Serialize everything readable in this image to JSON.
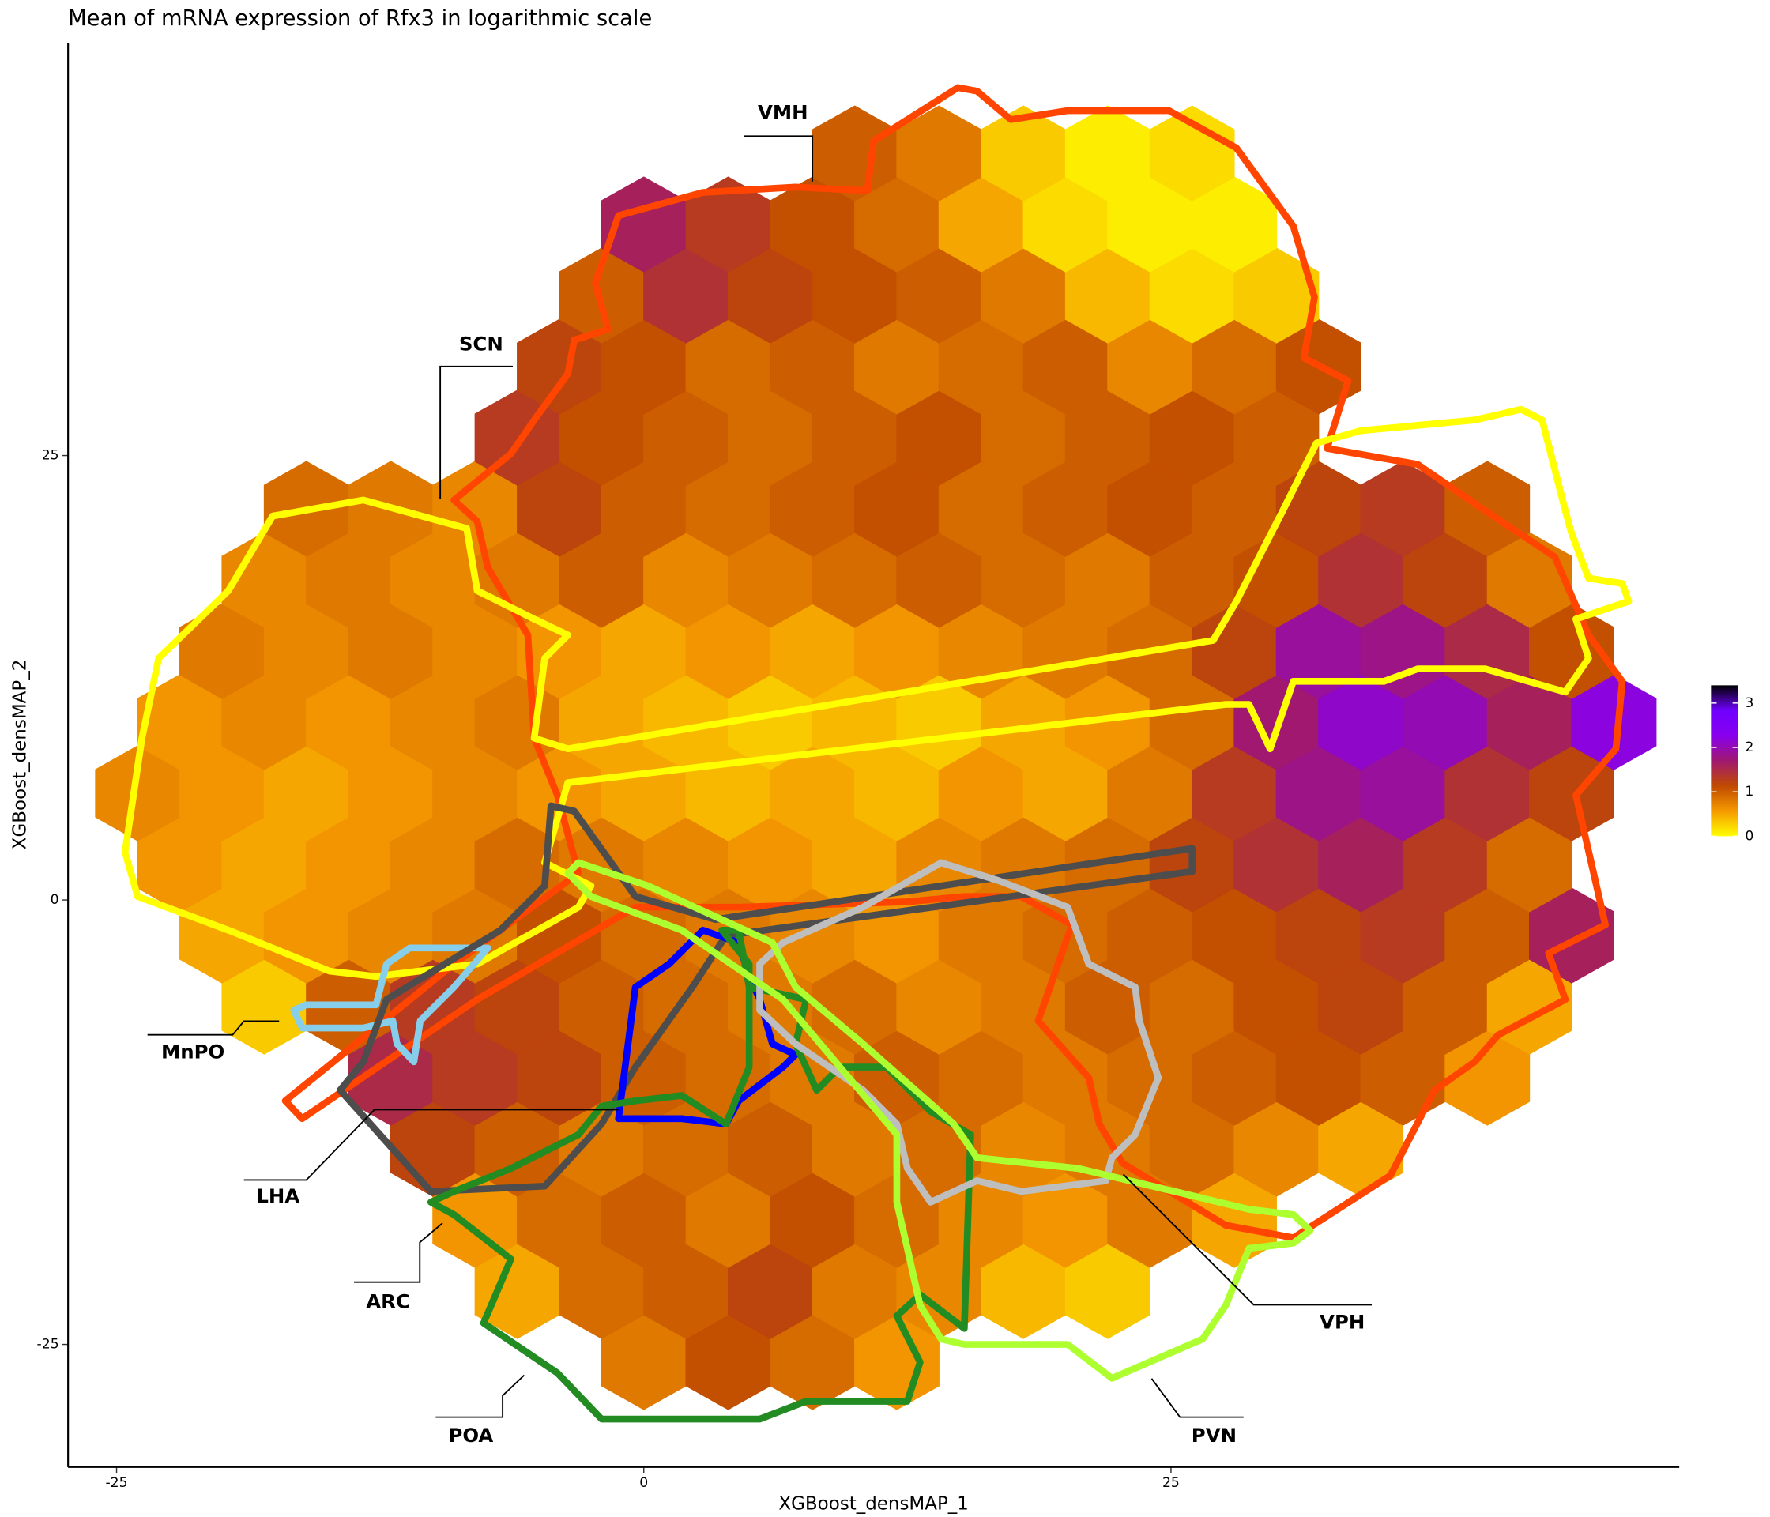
{
  "chart_data": {
    "type": "hexbin",
    "title": "Mean of mRNA expression of Rfx3 in logarithmic scale",
    "xlabel": "XGBoost_densMAP_1",
    "ylabel": "XGBoost_densMAP_2",
    "xlim": [
      -27.3,
      49.1
    ],
    "ylim": [
      -31.9,
      48.2
    ],
    "xticks": [
      -25,
      0,
      25
    ],
    "yticks": [
      -25,
      0,
      25
    ],
    "clim": [
      0,
      3.4
    ],
    "cticks": [
      0,
      1,
      2,
      3
    ],
    "colors": [
      "#ffff00",
      "#f59a00",
      "#c04a00",
      "#a01870",
      "#8800ee",
      "#7000ff",
      "#000000"
    ],
    "rows": [
      {
        "y": -26,
        "x": [
          0,
          4,
          8,
          12
        ],
        "values": [
          0.8,
          1.1,
          0.9,
          0.6
        ]
      },
      {
        "y": -22,
        "x": [
          -6,
          -2,
          2,
          6,
          10,
          14,
          18,
          22
        ],
        "values": [
          0.5,
          0.9,
          1.0,
          1.2,
          0.8,
          0.7,
          0.4,
          0.3
        ]
      },
      {
        "y": -18,
        "x": [
          -8,
          -4,
          0,
          4,
          8,
          12,
          16,
          20,
          24,
          28
        ],
        "values": [
          0.6,
          0.9,
          1.0,
          0.8,
          1.1,
          0.9,
          0.7,
          0.6,
          0.8,
          0.5
        ]
      },
      {
        "y": -14,
        "x": [
          -10,
          -6,
          -2,
          2,
          6,
          10,
          14,
          18,
          22,
          26,
          30,
          34
        ],
        "values": [
          1.2,
          1.0,
          0.8,
          0.9,
          1.0,
          0.8,
          0.9,
          0.7,
          0.8,
          0.9,
          0.7,
          0.5
        ]
      },
      {
        "y": -10,
        "x": [
          -12,
          -8,
          -4,
          0,
          4,
          8,
          12,
          16,
          20,
          24,
          28,
          32,
          36,
          40
        ],
        "values": [
          1.5,
          1.3,
          1.2,
          1.0,
          0.9,
          0.8,
          1.0,
          0.9,
          0.8,
          0.9,
          1.0,
          1.1,
          1.0,
          0.6
        ]
      },
      {
        "y": -6,
        "x": [
          -18,
          -14,
          -10,
          -6,
          -2,
          2,
          6,
          10,
          14,
          18,
          22,
          26,
          30,
          34,
          38,
          42
        ],
        "values": [
          0.3,
          1.0,
          1.3,
          1.2,
          1.0,
          0.9,
          0.8,
          0.9,
          0.7,
          0.8,
          1.0,
          0.9,
          1.1,
          1.2,
          1.0,
          0.5
        ]
      },
      {
        "y": -2,
        "x": [
          -20,
          -16,
          -12,
          -8,
          -4,
          0,
          4,
          8,
          12,
          16,
          20,
          24,
          28,
          32,
          36,
          40,
          44
        ],
        "values": [
          0.5,
          0.6,
          0.7,
          0.8,
          1.1,
          0.9,
          0.8,
          0.7,
          0.6,
          0.8,
          0.9,
          1.0,
          1.1,
          1.2,
          1.3,
          1.0,
          1.6
        ]
      },
      {
        "y": 2,
        "x": [
          -22,
          -18,
          -14,
          -10,
          -6,
          -2,
          2,
          6,
          10,
          14,
          18,
          22,
          26,
          30,
          34,
          38,
          42
        ],
        "values": [
          0.6,
          0.5,
          0.6,
          0.7,
          0.9,
          0.8,
          0.7,
          0.6,
          0.5,
          0.7,
          0.8,
          0.9,
          1.2,
          1.4,
          1.6,
          1.3,
          0.9
        ]
      },
      {
        "y": 6,
        "x": [
          -24,
          -20,
          -16,
          -12,
          -8,
          -4,
          0,
          4,
          8,
          12,
          16,
          20,
          24,
          28,
          32,
          36,
          40,
          44
        ],
        "values": [
          0.7,
          0.6,
          0.5,
          0.6,
          0.7,
          0.6,
          0.5,
          0.4,
          0.5,
          0.4,
          0.6,
          0.5,
          0.8,
          1.3,
          1.8,
          1.9,
          1.4,
          1.2
        ]
      },
      {
        "y": 10,
        "x": [
          -22,
          -18,
          -14,
          -10,
          -6,
          -2,
          2,
          6,
          10,
          14,
          18,
          22,
          26,
          30,
          34,
          38,
          42,
          46
        ],
        "values": [
          0.6,
          0.7,
          0.6,
          0.7,
          0.8,
          0.5,
          0.4,
          0.3,
          0.4,
          0.3,
          0.5,
          0.6,
          0.9,
          1.7,
          2.1,
          2.0,
          1.6,
          2.2
        ]
      },
      {
        "y": 14,
        "x": [
          -20,
          -16,
          -12,
          -8,
          -4,
          0,
          4,
          8,
          12,
          16,
          20,
          24,
          28,
          32,
          36,
          40,
          44
        ],
        "values": [
          0.8,
          0.7,
          0.8,
          0.7,
          0.6,
          0.5,
          0.6,
          0.5,
          0.6,
          0.7,
          0.8,
          0.9,
          1.2,
          1.9,
          1.8,
          1.5,
          1.1
        ]
      },
      {
        "y": 18,
        "x": [
          -18,
          -14,
          -10,
          -6,
          -2,
          2,
          6,
          10,
          14,
          18,
          22,
          26,
          30,
          34,
          38,
          42
        ],
        "values": [
          0.7,
          0.8,
          0.7,
          0.8,
          1.0,
          0.7,
          0.8,
          0.9,
          1.0,
          0.9,
          0.8,
          1.0,
          1.1,
          1.4,
          1.2,
          0.8
        ]
      },
      {
        "y": 22,
        "x": [
          -16,
          -12,
          -8,
          -4,
          0,
          4,
          8,
          12,
          16,
          20,
          24,
          28,
          32,
          36,
          40
        ],
        "values": [
          0.9,
          0.8,
          0.7,
          1.2,
          1.0,
          0.9,
          1.0,
          1.1,
          0.9,
          1.0,
          1.1,
          1.0,
          1.2,
          1.3,
          1.0
        ]
      },
      {
        "y": 26,
        "x": [
          -6,
          -2,
          2,
          6,
          10,
          14,
          18,
          22,
          26,
          30
        ],
        "values": [
          1.3,
          1.1,
          1.0,
          0.9,
          1.0,
          1.1,
          0.9,
          1.0,
          1.1,
          1.0
        ]
      },
      {
        "y": 30,
        "x": [
          -4,
          0,
          4,
          8,
          12,
          16,
          20,
          24,
          28,
          32
        ],
        "values": [
          1.2,
          1.1,
          0.9,
          1.0,
          0.8,
          0.9,
          1.0,
          0.7,
          0.9,
          1.1
        ]
      },
      {
        "y": 34,
        "x": [
          -2,
          2,
          6,
          10,
          14,
          18,
          22,
          26,
          30
        ],
        "values": [
          1.0,
          1.4,
          1.2,
          1.1,
          1.0,
          0.8,
          0.4,
          0.2,
          0.3
        ]
      },
      {
        "y": 38,
        "x": [
          0,
          4,
          8,
          12,
          16,
          20,
          24,
          28
        ],
        "values": [
          1.6,
          1.3,
          1.1,
          0.9,
          0.5,
          0.2,
          0.1,
          0.1
        ]
      },
      {
        "y": 42,
        "x": [
          10,
          14,
          18,
          22,
          26
        ],
        "values": [
          1.0,
          0.8,
          0.3,
          0.1,
          0.2
        ]
      }
    ],
    "outlines": [
      {
        "name": "VMH",
        "color": "#ff4500",
        "x": [
          -9.0,
          -6.3,
          -5.2,
          -3.6,
          -3.3,
          -1.7,
          -2.3,
          -1.2,
          2.8,
          7.2,
          10.6,
          10.9,
          14.9,
          15.8,
          17.4,
          20.1,
          24.9,
          28.1,
          30.8,
          31.8,
          31.3,
          33.4,
          32.4,
          36.7,
          39.9,
          43.2,
          44.8,
          46.4,
          46.1,
          44.2,
          45.6,
          42.9,
          43.7,
          40.5,
          39.4,
          37.5,
          35.4,
          30.8,
          27.6,
          22.7,
          21.6,
          21.1,
          18.7,
          20.3,
          17.9,
          15.2,
          12.5,
          4.5,
          -0.4,
          -7.9,
          -16.2,
          -17.0,
          -9.0,
          -3.1,
          -4.1,
          -5.2,
          -5.5,
          -7.4,
          -7.9
        ],
        "y": [
          22.5,
          25.1,
          27.0,
          29.6,
          31.5,
          32.1,
          34.7,
          38.5,
          39.8,
          40.1,
          39.9,
          42.7,
          45.7,
          45.5,
          43.9,
          44.4,
          44.4,
          42.3,
          37.9,
          33.9,
          30.5,
          29.2,
          25.4,
          24.5,
          21.9,
          19.3,
          14.9,
          12.3,
          8.5,
          5.9,
          -1.4,
          -3.0,
          -5.6,
          -7.6,
          -9.1,
          -10.7,
          -15.5,
          -19.0,
          -18.3,
          -14.8,
          -12.6,
          -10.0,
          -6.8,
          -1.4,
          0.2,
          0.2,
          -0.1,
          -0.4,
          -0.4,
          -5.6,
          -12.3,
          -11.3,
          -3.6,
          1.5,
          5.9,
          9.1,
          14.9,
          18.7,
          21.3
        ]
      },
      {
        "name": "SCN",
        "color": "#ffff00",
        "x": [
          -17.6,
          -13.3,
          -8.4,
          -7.9,
          -5.2,
          -3.6,
          -4.7,
          -5.2,
          -3.6,
          27.0,
          28.1,
          30.3,
          31.9,
          34.0,
          39.4,
          41.6,
          42.6,
          43.7,
          44.0,
          44.8,
          46.4,
          46.7,
          44.2,
          44.8,
          43.7,
          39.9,
          36.7,
          35.1,
          30.8,
          29.7,
          28.7,
          27.6,
          -3.6,
          -4.7,
          -2.5,
          -3.1,
          -7.9,
          -12.7,
          -14.9,
          -19.7,
          -24.0,
          -24.6,
          -23.8,
          -23.0,
          -19.7
        ],
        "y": [
          21.6,
          22.5,
          20.9,
          17.4,
          15.8,
          14.9,
          13.6,
          9.1,
          8.5,
          14.6,
          16.8,
          21.9,
          25.7,
          26.4,
          27.0,
          27.6,
          27.0,
          21.9,
          20.6,
          18.1,
          17.8,
          16.8,
          15.8,
          13.6,
          11.7,
          13.0,
          13.0,
          12.3,
          12.3,
          8.5,
          11.0,
          11.0,
          6.6,
          2.1,
          0.8,
          -0.4,
          -3.6,
          -4.3,
          -4.0,
          -1.7,
          0.2,
          2.7,
          9.1,
          13.6,
          17.4
        ]
      },
      {
        "name": "MnPO",
        "color": "#87ceeb",
        "x": [
          -12.2,
          -11.1,
          -7.4,
          -9.0,
          -10.6,
          -10.9,
          -11.7,
          -11.9,
          -13.3,
          -16.2,
          -16.6,
          -16.0,
          -12.7
        ],
        "y": [
          -3.6,
          -2.7,
          -2.7,
          -4.9,
          -6.8,
          -9.1,
          -8.1,
          -6.8,
          -7.2,
          -7.2,
          -6.2,
          -5.9,
          -5.9
        ]
      },
      {
        "name": "LHA",
        "color": "#4d4d4d",
        "x": [
          -4.4,
          -4.7,
          -6.8,
          -12.2,
          -13.3,
          -14.4,
          -10.1,
          -4.7,
          -2.0,
          -0.4,
          2.3,
          3.9,
          26.0,
          26.0,
          3.4,
          -0.4,
          -3.3
        ],
        "y": [
          5.3,
          0.8,
          -1.7,
          -5.6,
          -9.1,
          -10.7,
          -16.4,
          -16.1,
          -12.6,
          -9.4,
          -4.9,
          -2.0,
          1.6,
          2.9,
          -1.1,
          0.2,
          5.0
        ]
      },
      {
        "name": "ARC",
        "color": "#0000ff",
        "x": [
          -0.4,
          -1.2,
          1.8,
          3.9,
          4.5,
          6.6,
          7.2,
          6.1,
          5.5,
          5.0,
          4.5,
          2.8,
          1.2
        ],
        "y": [
          -4.9,
          -12.3,
          -12.3,
          -12.6,
          -11.3,
          -9.4,
          -8.7,
          -8.1,
          -5.6,
          -4.3,
          -2.4,
          -1.7,
          -3.6
        ]
      },
      {
        "name": "POA",
        "color": "#228b22",
        "x": [
          -10.1,
          -9.0,
          -6.3,
          -7.6,
          -4.1,
          -2.0,
          5.5,
          7.7,
          12.5,
          13.1,
          12.0,
          13.1,
          15.2,
          15.5,
          13.6,
          11.5,
          9.3,
          8.2,
          7.2,
          7.7,
          5.0,
          4.5,
          3.7,
          5.0,
          5.0,
          3.9,
          1.8,
          -0.4,
          -2.0,
          -3.1,
          -6.3,
          -9.0
        ],
        "y": [
          -17.0,
          -17.7,
          -20.2,
          -23.8,
          -26.6,
          -29.2,
          -29.2,
          -28.2,
          -28.2,
          -26.0,
          -23.4,
          -22.2,
          -24.1,
          -13.2,
          -11.9,
          -9.4,
          -9.4,
          -10.7,
          -8.1,
          -5.6,
          -4.9,
          -1.7,
          -1.7,
          -3.6,
          -9.4,
          -12.6,
          -11.0,
          -11.3,
          -11.6,
          -13.2,
          -15.1,
          -16.4
        ]
      },
      {
        "name": "VPH",
        "color": "#bebebe",
        "x": [
          6.6,
          10.4,
          14.1,
          16.8,
          20.1,
          21.1,
          23.3,
          23.5,
          24.4,
          23.3,
          22.2,
          21.9,
          17.9,
          15.8,
          13.6,
          12.5,
          12.0,
          10.4,
          7.2,
          5.5,
          5.5
        ],
        "y": [
          -2.4,
          -0.4,
          2.1,
          1.1,
          -0.4,
          -3.6,
          -4.9,
          -6.8,
          -10.0,
          -13.2,
          -14.5,
          -15.8,
          -16.4,
          -15.8,
          -17.0,
          -15.1,
          -12.6,
          -10.7,
          -8.1,
          -6.2,
          -3.6
        ]
      },
      {
        "name": "PVN",
        "color": "#adff2f",
        "x": [
          -3.6,
          -3.1,
          0.2,
          6.1,
          7.2,
          10.4,
          14.7,
          15.8,
          20.6,
          28.7,
          30.8,
          31.6,
          30.8,
          28.7,
          27.6,
          26.5,
          22.2,
          20.1,
          15.2,
          14.1,
          13.1,
          12.5,
          12.0,
          12.0,
          9.3,
          6.6,
          1.8,
          -2.5
        ],
        "y": [
          1.5,
          2.1,
          0.8,
          -2.4,
          -4.9,
          -8.1,
          -12.6,
          -14.5,
          -15.1,
          -17.4,
          -17.7,
          -18.6,
          -19.3,
          -19.6,
          -22.8,
          -24.7,
          -26.9,
          -25.0,
          -25.0,
          -24.7,
          -22.8,
          -19.6,
          -17.0,
          -13.2,
          -9.4,
          -5.6,
          -1.7,
          0.2
        ]
      }
    ]
  }
}
